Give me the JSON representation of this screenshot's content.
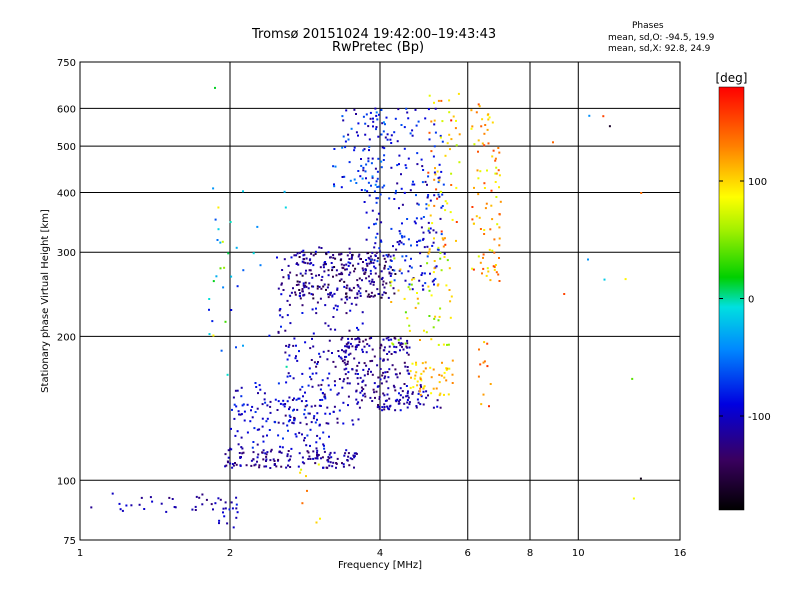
{
  "chart_data": {
    "type": "scatter",
    "title": "Tromsø 20151024 19:42:00–19:43:43",
    "subtitle": "RwPretec (Bp)",
    "stats": {
      "header": "Phases",
      "line_o": "mean, sd,O: -94.5, 19.9",
      "line_x": "mean, sd,X:  92.8, 24.9"
    },
    "xlabel": "Frequency [MHz]",
    "ylabel": "Stationary phase Virtual Height [km]",
    "xscale": "log",
    "yscale": "log",
    "xlim": [
      1,
      16
    ],
    "ylim": [
      75,
      750
    ],
    "grid": true,
    "x_ticks": [
      {
        "value": 1,
        "label": "1"
      },
      {
        "value": 2,
        "label": "2"
      },
      {
        "value": 4,
        "label": "4"
      },
      {
        "value": 6,
        "label": "6"
      },
      {
        "value": 8,
        "label": "8"
      },
      {
        "value": 10,
        "label": "10"
      },
      {
        "value": 16,
        "label": "16"
      }
    ],
    "y_ticks": [
      {
        "value": 75,
        "label": "75"
      },
      {
        "value": 100,
        "label": "100"
      },
      {
        "value": 200,
        "label": "200"
      },
      {
        "value": 300,
        "label": "300"
      },
      {
        "value": 400,
        "label": "400"
      },
      {
        "value": 500,
        "label": "500"
      },
      {
        "value": 600,
        "label": "600"
      },
      {
        "value": 750,
        "label": "750"
      }
    ],
    "colorbar": {
      "label": "[deg]",
      "range": [
        -180,
        180
      ],
      "ticks": [
        {
          "value": 100,
          "label": "100"
        },
        {
          "value": 0,
          "label": "0"
        },
        {
          "value": -100,
          "label": "-100"
        }
      ]
    },
    "clusters": [
      {
        "f": [
          1.05,
          1.9
        ],
        "h": [
          85,
          95
        ],
        "phase": [
          -130,
          -90
        ],
        "count": 30
      },
      {
        "f": [
          1.9,
          2.1
        ],
        "h": [
          78,
          92
        ],
        "phase": [
          -130,
          -80
        ],
        "count": 18
      },
      {
        "f": [
          1.95,
          3.6
        ],
        "h": [
          106,
          116
        ],
        "phase": [
          -140,
          -95
        ],
        "count": 140
      },
      {
        "f": [
          2.0,
          3.2
        ],
        "h": [
          116,
          160
        ],
        "phase": [
          -120,
          -70
        ],
        "count": 140
      },
      {
        "f": [
          2.5,
          3.7
        ],
        "h": [
          130,
          310
        ],
        "phase": [
          -135,
          -80
        ],
        "count": 240
      },
      {
        "f": [
          2.7,
          4.3
        ],
        "h": [
          240,
          300
        ],
        "phase": [
          -160,
          -100
        ],
        "count": 200
      },
      {
        "f": [
          3.3,
          4.6
        ],
        "h": [
          140,
          200
        ],
        "phase": [
          -140,
          -95
        ],
        "count": 180
      },
      {
        "f": [
          3.7,
          5.4
        ],
        "h": [
          250,
          600
        ],
        "phase": [
          -120,
          -60
        ],
        "count": 240
      },
      {
        "f": [
          3.2,
          4.1
        ],
        "h": [
          400,
          600
        ],
        "phase": [
          -120,
          -40
        ],
        "count": 60
      },
      {
        "f": [
          3.9,
          5.3
        ],
        "h": [
          140,
          160
        ],
        "phase": [
          -130,
          -80
        ],
        "count": 50
      },
      {
        "f": [
          4.2,
          5.6
        ],
        "h": [
          190,
          300
        ],
        "phase": [
          40,
          120
        ],
        "count": 60
      },
      {
        "f": [
          4.6,
          5.6
        ],
        "h": [
          150,
          180
        ],
        "phase": [
          80,
          130
        ],
        "count": 50
      },
      {
        "f": [
          5.0,
          5.8
        ],
        "h": [
          300,
          650
        ],
        "phase": [
          60,
          170
        ],
        "count": 60
      },
      {
        "f": [
          6.1,
          7.0
        ],
        "h": [
          260,
          620
        ],
        "phase": [
          70,
          160
        ],
        "count": 90
      },
      {
        "f": [
          6.3,
          6.7
        ],
        "h": [
          140,
          200
        ],
        "phase": [
          100,
          170
        ],
        "count": 12
      },
      {
        "f": [
          1.8,
          2.6
        ],
        "h": [
          150,
          420
        ],
        "phase": [
          -90,
          0
        ],
        "count": 30
      },
      {
        "f": [
          1.85,
          2.0
        ],
        "h": [
          190,
          680
        ],
        "phase": [
          -120,
          170
        ],
        "count": 10
      },
      {
        "f": [
          2.7,
          3.1
        ],
        "h": [
          80,
          110
        ],
        "phase": [
          60,
          140
        ],
        "count": 8
      },
      {
        "f": [
          8.5,
          14
        ],
        "h": [
          90,
          620
        ],
        "phase": [
          -180,
          180
        ],
        "count": 12
      }
    ]
  }
}
